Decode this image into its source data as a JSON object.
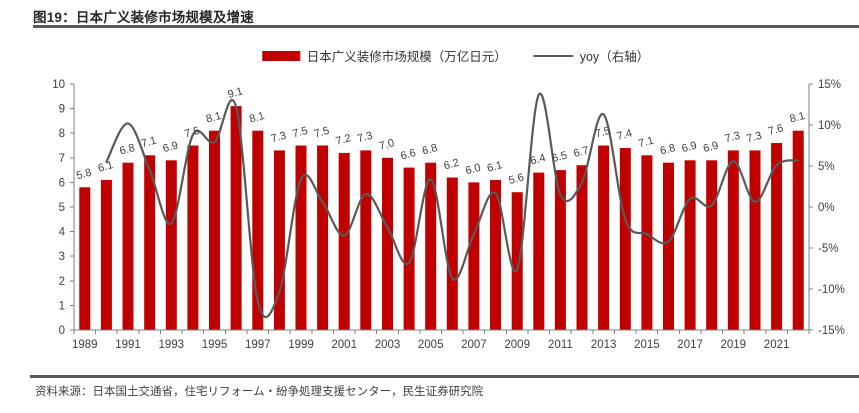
{
  "header": {
    "title": "图19：日本广义装修市场规模及增速"
  },
  "legend": {
    "bars_label": "日本广义装修市场规模（万亿日元）",
    "line_label": "yoy（右轴）"
  },
  "colors": {
    "bar": "#C00000",
    "line": "#595959",
    "axis": "#808080",
    "label_text": "#404040"
  },
  "chart_data": {
    "type": "bar",
    "subtype": "combo-bar-line",
    "title": "图19：日本广义装修市场规模及增速",
    "categories": [
      1989,
      1990,
      1991,
      1992,
      1993,
      1994,
      1995,
      1996,
      1997,
      1998,
      1999,
      2000,
      2001,
      2002,
      2003,
      2004,
      2005,
      2006,
      2007,
      2008,
      2009,
      2010,
      2011,
      2012,
      2013,
      2014,
      2015,
      2016,
      2017,
      2018,
      2019,
      2020,
      2021,
      2022
    ],
    "x_tick_labels": [
      "1989",
      "1991",
      "1993",
      "1995",
      "1997",
      "1999",
      "2001",
      "2003",
      "2005",
      "2007",
      "2009",
      "2011",
      "2013",
      "2015",
      "2017",
      "2019",
      "2021"
    ],
    "x_tick_interval": 2,
    "series": [
      {
        "name": "日本广义装修市场规模（万亿日元）",
        "type": "bar",
        "axis": "left",
        "values": [
          5.8,
          6.1,
          6.8,
          7.1,
          6.9,
          7.5,
          8.1,
          9.1,
          8.1,
          7.3,
          7.5,
          7.5,
          7.2,
          7.3,
          7.0,
          6.6,
          6.8,
          6.2,
          6.0,
          6.1,
          5.6,
          6.4,
          6.5,
          6.7,
          7.5,
          7.4,
          7.1,
          6.8,
          6.9,
          6.9,
          7.3,
          7.3,
          7.6,
          8.1
        ]
      },
      {
        "name": "yoy（右轴）",
        "type": "line",
        "axis": "right",
        "unit": "%",
        "values": [
          null,
          5.5,
          10.2,
          4.5,
          -2.0,
          8.8,
          7.9,
          12.2,
          -11.5,
          -10.3,
          3.4,
          0.6,
          -3.5,
          1.6,
          -2.5,
          -6.8,
          3.4,
          -8.7,
          -3.3,
          1.7,
          -7.6,
          13.7,
          1.5,
          3.0,
          11.3,
          -1.5,
          -3.3,
          -4.2,
          1.0,
          0.2,
          5.6,
          0.6,
          5.1,
          5.7
        ]
      }
    ],
    "left_axis": {
      "min": 0,
      "max": 10,
      "tick_labels": [
        "0",
        "1",
        "2",
        "3",
        "4",
        "5",
        "6",
        "7",
        "8",
        "9",
        "10"
      ]
    },
    "right_axis": {
      "min": -15,
      "max": 15,
      "tick_labels": [
        "-15%",
        "-10%",
        "-5%",
        "0%",
        "5%",
        "10%",
        "15%"
      ]
    },
    "grid": false,
    "legend_position": "top-center",
    "data_labels": true
  },
  "footer": {
    "source": "资料来源：日本国土交通省，住宅リフォーム・紛争処理支援センター，民生证券研究院"
  }
}
